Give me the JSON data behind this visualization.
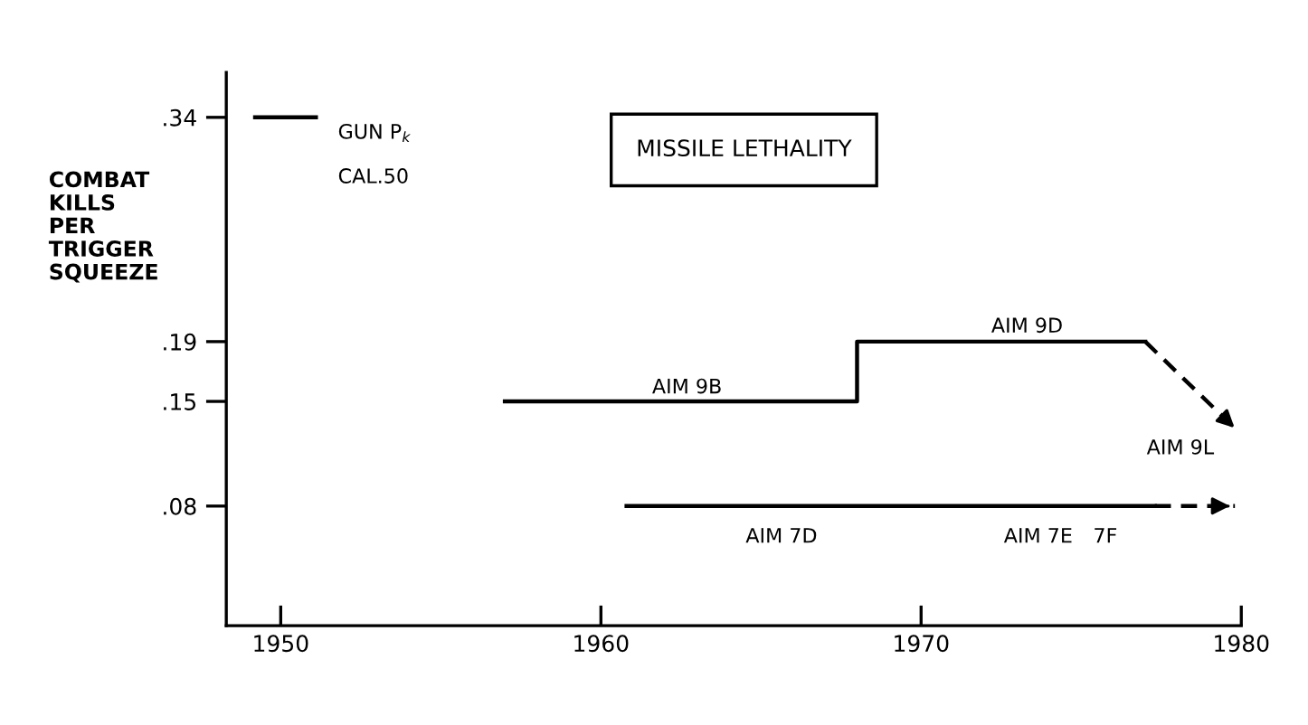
{
  "chart_data": {
    "type": "line",
    "title": "MISSILE LETHALITY",
    "ylabel": "COMBAT\nKILLS\nPER\nTRIGGER\nSQUEEZE",
    "xlim": [
      1948.3,
      1980
    ],
    "xticks": [
      1950,
      1960,
      1970,
      1980
    ],
    "ylim": [
      0,
      0.37
    ],
    "yticks": [
      {
        "value": 0.08,
        "label": ".08"
      },
      {
        "value": 0.15,
        "label": ".15"
      },
      {
        "value": 0.19,
        "label": ".19"
      },
      {
        "value": 0.34,
        "label": ".34"
      }
    ],
    "grid": false,
    "legend": false,
    "series": [
      {
        "color": "#000000",
        "line_style": "solid",
        "x": [
          1949.2,
          1951.1
        ],
        "values": [
          0.34,
          0.34
        ]
      },
      {
        "type": "step",
        "color": "#000000",
        "line_style": "solid",
        "x": [
          1957.0,
          1968.0,
          1977.0
        ],
        "values": [
          0.15,
          0.19,
          0.19
        ]
      },
      {
        "color": "#000000",
        "line_style": "dashed",
        "x": [
          1977.0,
          1979.9
        ],
        "values": [
          0.19,
          0.13
        ]
      },
      {
        "color": "#000000",
        "line_style": "solid",
        "x": [
          1960.8,
          1977.3
        ],
        "values": [
          0.08,
          0.08
        ]
      },
      {
        "color": "#000000",
        "line_style": "dashed",
        "x": [
          1977.3,
          1979.8
        ],
        "values": [
          0.08,
          0.08
        ]
      }
    ],
    "annotations": [
      "GUN P$_{k}$",
      "CAL.50",
      "AIM 9B",
      "AIM 9D",
      "AIM 9L",
      "AIM 7D",
      "AIM 7E",
      "7F"
    ]
  }
}
